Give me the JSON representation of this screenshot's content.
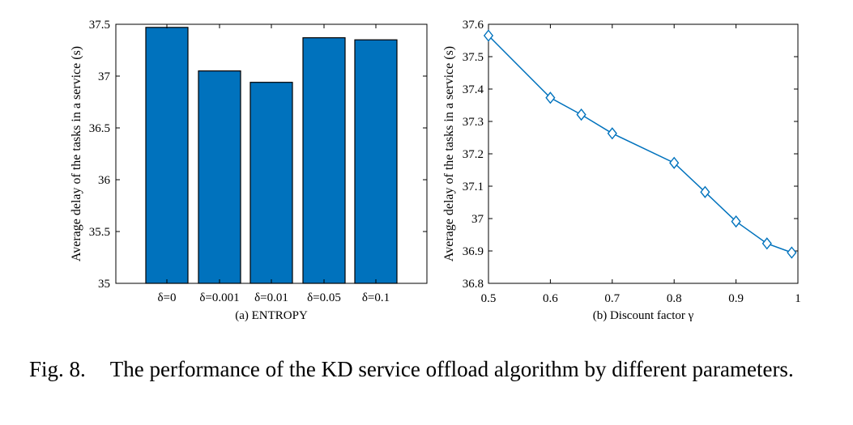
{
  "chart_data": [
    {
      "type": "bar",
      "categories": [
        "δ=0",
        "δ=0.001",
        "δ=0.01",
        "δ=0.05",
        "δ=0.1"
      ],
      "values": [
        37.47,
        37.05,
        36.94,
        37.37,
        37.35
      ],
      "ylabel": "Average delay of the tasks in a service (s)",
      "ylim": [
        35,
        37.5
      ],
      "yticks": [
        35,
        35.5,
        36,
        36.5,
        37,
        37.5
      ],
      "caption": "(a) ENTROPY",
      "bar_color": "#0072bd",
      "grid": false
    },
    {
      "type": "line",
      "x": [
        0.5,
        0.6,
        0.65,
        0.7,
        0.8,
        0.85,
        0.9,
        0.95,
        0.99
      ],
      "y": [
        37.565,
        37.373,
        37.321,
        37.263,
        37.172,
        37.082,
        36.991,
        36.923,
        36.895
      ],
      "ylabel": "Average delay of the tasks in a service (s)",
      "xlim": [
        0.5,
        1
      ],
      "ylim": [
        36.8,
        37.6
      ],
      "xticks": [
        0.5,
        0.6,
        0.7,
        0.8,
        0.9,
        1
      ],
      "yticks": [
        36.8,
        36.9,
        37,
        37.1,
        37.2,
        37.3,
        37.4,
        37.5,
        37.6
      ],
      "caption": "(b) Discount factor γ",
      "marker": "diamond",
      "line_color": "#0072bd",
      "grid": false
    }
  ],
  "caption": {
    "fig_num": "Fig. 8.",
    "text": "The performance of the KD service offload algorithm by different parameters."
  }
}
